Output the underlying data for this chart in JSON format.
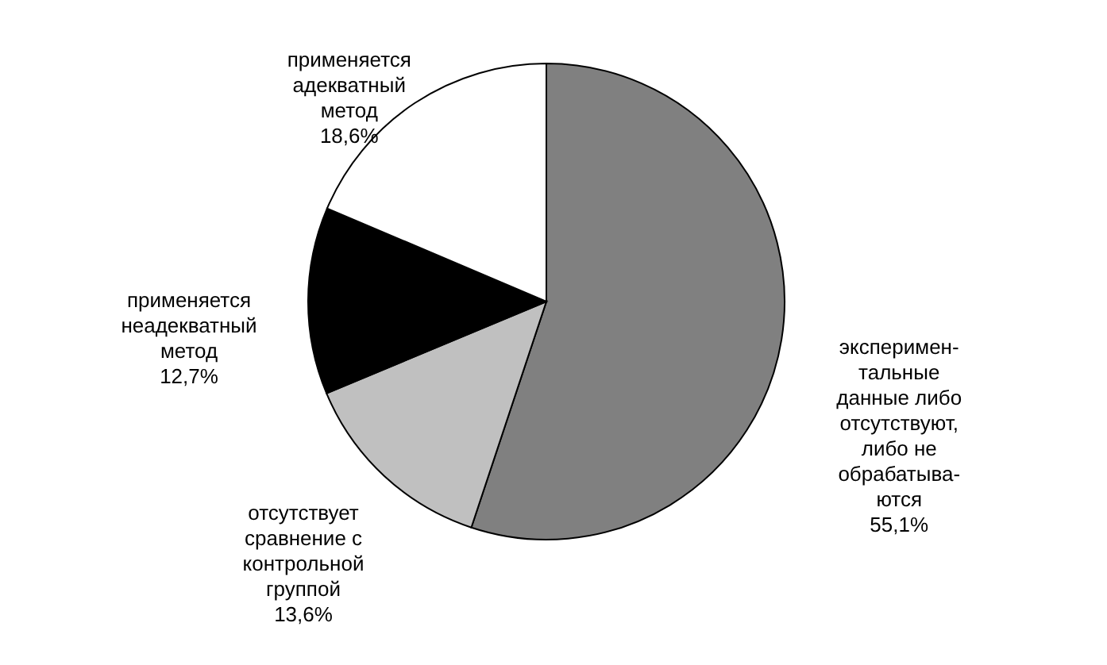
{
  "chart_data": {
    "type": "pie",
    "categories": [
      "эксперимен-\nтальные\nданные либо\nотсутствуют,\nлибо не\nобрабатыва-\nются",
      "отсутствует\nсравнение с\nконтрольной\nгруппой",
      "применяется\nнеадекватный\nметод",
      "применяется\nадекватный\nметод"
    ],
    "values": [
      55.1,
      13.6,
      12.7,
      18.6
    ],
    "value_labels": [
      "55,1%",
      "13,6%",
      "12,7%",
      "18,6%"
    ],
    "colors": [
      "#808080",
      "#c0c0c0",
      "#000000",
      "#ffffff"
    ]
  }
}
